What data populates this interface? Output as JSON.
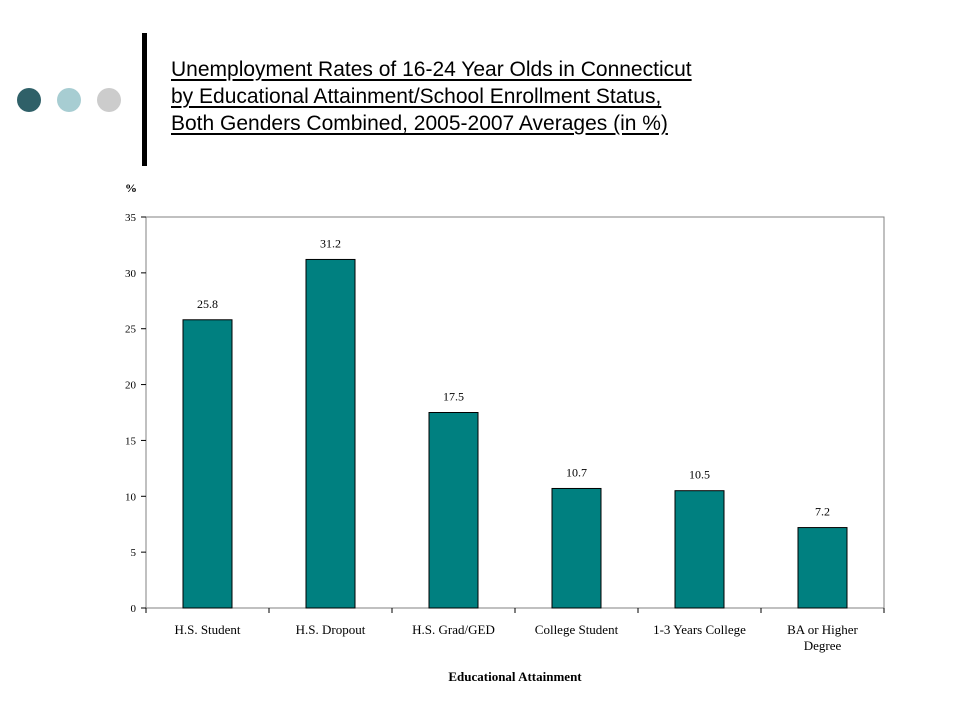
{
  "slide": {
    "title_lines": [
      "Unemployment Rates of 16-24 Year Olds in Connecticut",
      "by Educational Attainment/School Enrollment Status,",
      "Both Genders Combined, 2005-2007 Averages (in %)"
    ],
    "decor_colors": [
      "#2F6068",
      "#A7CDD2",
      "#CCCCCC"
    ]
  },
  "chart_data": {
    "type": "bar",
    "categories": [
      [
        "H.S. Student"
      ],
      [
        "H.S. Dropout"
      ],
      [
        "H.S. Grad/GED"
      ],
      [
        "College Student"
      ],
      [
        "1-3 Years College"
      ],
      [
        "BA or Higher",
        "Degree"
      ]
    ],
    "values": [
      25.8,
      31.2,
      17.5,
      10.7,
      10.5,
      7.2
    ],
    "value_labels": [
      "25.8",
      "31.2",
      "17.5",
      "10.7",
      "10.5",
      "7.2"
    ],
    "ylabel": "%",
    "xlabel": "Educational Attainment",
    "ylim": [
      0,
      35
    ],
    "yticks": [
      0,
      5,
      10,
      15,
      20,
      25,
      30,
      35
    ],
    "bar_color": "#008080",
    "grid": false,
    "legend": "none"
  }
}
